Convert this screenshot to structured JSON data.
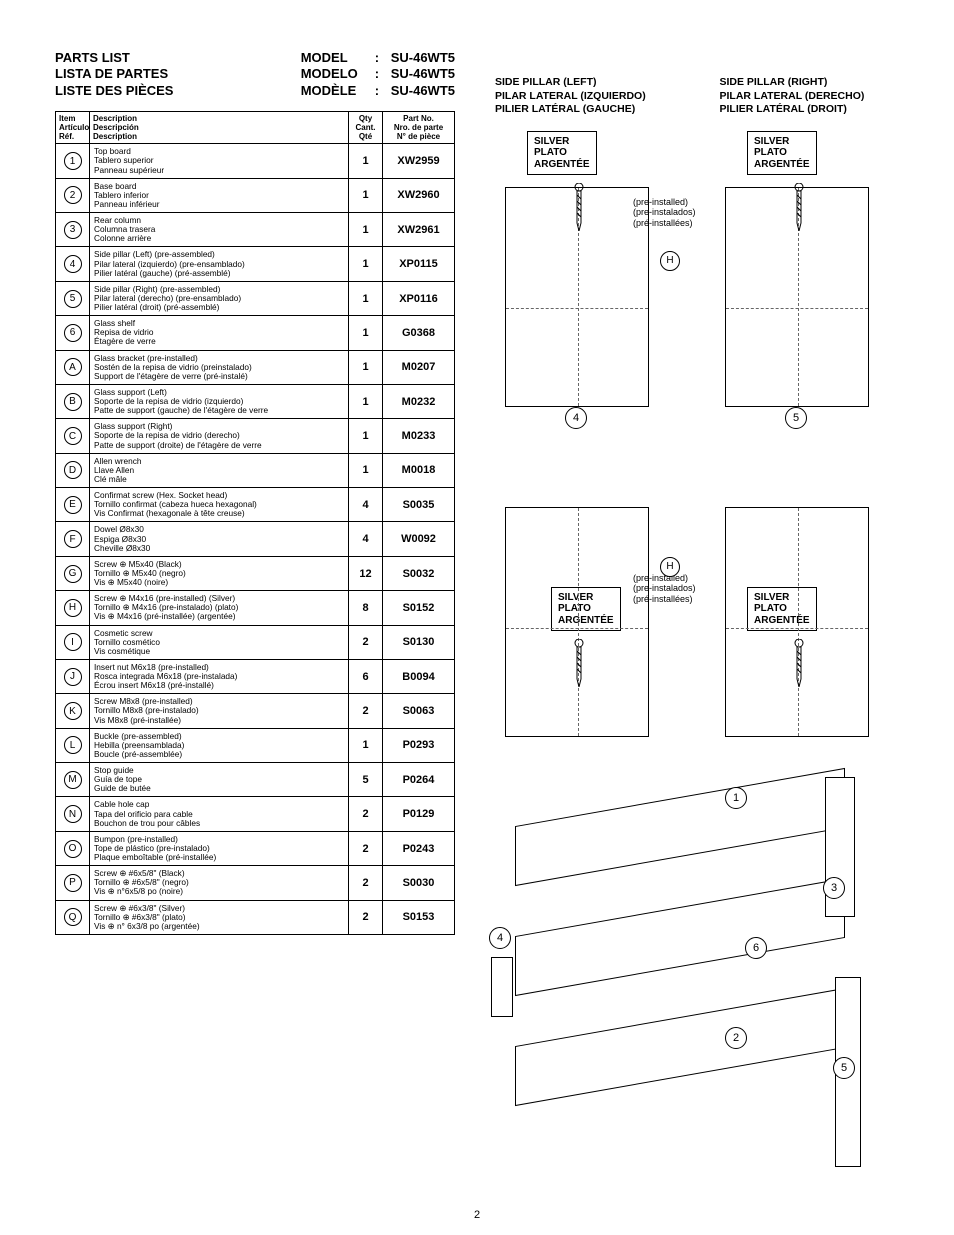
{
  "header": {
    "titles": [
      "PARTS LIST",
      "LISTA DE PARTES",
      "LISTE DES PIÈCES"
    ],
    "model_labels": [
      "MODEL",
      "MODELO",
      "MODÈLE"
    ],
    "model_value": "SU-46WT5"
  },
  "table": {
    "head": {
      "item": [
        "Item",
        "Artículo",
        "Réf."
      ],
      "desc": [
        "Description",
        "Descripción",
        "Description"
      ],
      "qty": [
        "Qty",
        "Cant.",
        "Qté"
      ],
      "part": [
        "Part No.",
        "Nro. de parte",
        "N° de pièce"
      ]
    },
    "rows": [
      {
        "id": "1",
        "desc": [
          "Top board",
          "Tablero superior",
          "Panneau supérieur"
        ],
        "qty": "1",
        "part": "XW2959"
      },
      {
        "id": "2",
        "desc": [
          "Base board",
          "Tablero inferior",
          "Panneau inférieur"
        ],
        "qty": "1",
        "part": "XW2960"
      },
      {
        "id": "3",
        "desc": [
          "Rear column",
          "Columna trasera",
          "Colonne arrière"
        ],
        "qty": "1",
        "part": "XW2961"
      },
      {
        "id": "4",
        "desc": [
          "Side pillar (Left) (pre-assembled)",
          "Pilar lateral (izquierdo) (pre-ensamblado)",
          "Pilier latéral (gauche) (pré-assemblé)"
        ],
        "qty": "1",
        "part": "XP0115"
      },
      {
        "id": "5",
        "desc": [
          "Side pillar (Right) (pre-assembled)",
          "Pilar lateral (derecho) (pre-ensamblado)",
          "Pilier latéral (droit) (pré-assemblé)"
        ],
        "qty": "1",
        "part": "XP0116"
      },
      {
        "id": "6",
        "desc": [
          "Glass shelf",
          "Repisa de vidrio",
          "Étagère de verre"
        ],
        "qty": "1",
        "part": "G0368"
      },
      {
        "id": "A",
        "desc": [
          "Glass bracket (pre-installed)",
          "Sostén de la repisa de vidrio (preinstalado)",
          "Support de l'étagère de verre (pré-instalé)"
        ],
        "qty": "1",
        "part": "M0207"
      },
      {
        "id": "B",
        "desc": [
          "Glass support (Left)",
          "Soporte de la repisa de vidrio (izquierdo)",
          "Patte de support (gauche) de l'étagère de verre"
        ],
        "qty": "1",
        "part": "M0232"
      },
      {
        "id": "C",
        "desc": [
          "Glass support (Right)",
          "Soporte de la repisa de vidrio (derecho)",
          "Patte de support (droite) de l'étagère de verre"
        ],
        "qty": "1",
        "part": "M0233"
      },
      {
        "id": "D",
        "desc": [
          "Allen wrench",
          "Llave Allen",
          "Clé mâle"
        ],
        "qty": "1",
        "part": "M0018"
      },
      {
        "id": "E",
        "desc": [
          "Confirmat screw (Hex. Socket head)",
          "Tornillo confirmat (cabeza hueca hexagonal)",
          "Vis Confirmat (hexagonale à tête creuse)"
        ],
        "qty": "4",
        "part": "S0035"
      },
      {
        "id": "F",
        "desc": [
          "Dowel Ø8x30",
          "Espiga Ø8x30",
          "Cheville Ø8x30"
        ],
        "qty": "4",
        "part": "W0092"
      },
      {
        "id": "G",
        "desc": [
          "Screw ⊕ M5x40 (Black)",
          "Tornillo ⊕ M5x40 (negro)",
          "Vis ⊕ M5x40 (noire)"
        ],
        "qty": "12",
        "part": "S0032"
      },
      {
        "id": "H",
        "desc": [
          "Screw ⊕ M4x16 (pre-installed) (Silver)",
          "Tornillo ⊕ M4x16 (pre-instalado) (plato)",
          "Vis ⊕ M4x16 (pré-installée) (argentée)"
        ],
        "qty": "8",
        "part": "S0152"
      },
      {
        "id": "I",
        "desc": [
          "Cosmetic screw",
          "Tornillo cosmético",
          "Vis cosmétique"
        ],
        "qty": "2",
        "part": "S0130"
      },
      {
        "id": "J",
        "desc": [
          "Insert nut M6x18 (pre-installed)",
          "Rosca integrada M6x18 (pre-instalada)",
          "Écrou insert M6x18 (pré-installé)"
        ],
        "qty": "6",
        "part": "B0094"
      },
      {
        "id": "K",
        "desc": [
          "Screw M8x8 (pre-installed)",
          "Tornillo M8x8 (pre-instalado)",
          "Vis M8x8 (pré-installée)"
        ],
        "qty": "2",
        "part": "S0063"
      },
      {
        "id": "L",
        "desc": [
          "Buckle (pre-assembled)",
          "Hebilla (preensamblada)",
          "Boucle (pré-assemblée)"
        ],
        "qty": "1",
        "part": "P0293"
      },
      {
        "id": "M",
        "desc": [
          "Stop guide",
          "Guía de tope",
          "Guide de butée"
        ],
        "qty": "5",
        "part": "P0264"
      },
      {
        "id": "N",
        "desc": [
          "Cable hole cap",
          "Tapa del orificio para cable",
          "Bouchon de trou pour câbles"
        ],
        "qty": "2",
        "part": "P0129"
      },
      {
        "id": "O",
        "desc": [
          "Bumpon (pre-installed)",
          "Tope de plástico (pre-instalado)",
          "Plaque emboîtable (pré-installée)"
        ],
        "qty": "2",
        "part": "P0243"
      },
      {
        "id": "P",
        "desc": [
          "Screw ⊕ #6x5/8\" (Black)",
          "Tornillo ⊕ #6x5/8\" (negro)",
          "Vis ⊕ n°6x5/8 po (noire)"
        ],
        "qty": "2",
        "part": "S0030"
      },
      {
        "id": "Q",
        "desc": [
          "Screw ⊕ #6x3/8\" (Silver)",
          "Tornillo ⊕ #6x3/8\" (plato)",
          "Vis ⊕ n° 6x3/8 po (argentée)"
        ],
        "qty": "2",
        "part": "S0153"
      }
    ]
  },
  "right": {
    "pillar_left": [
      "SIDE PILLAR (LEFT)",
      "PILAR LATERAL (IZQUIERDO)",
      "PILIER LATÉRAL (GAUCHE)"
    ],
    "pillar_right": [
      "SIDE PILLAR (RIGHT)",
      "PILAR LATERAL (DERECHO)",
      "PILIER LATÉRAL (DROIT)"
    ],
    "silver": [
      "SILVER",
      "PLATO",
      "ARGENTÉE"
    ],
    "preinstalled": [
      "(pre-installed)",
      "(pre-instalados)",
      "(pré-installées)"
    ],
    "callouts": {
      "h": "H",
      "four": "4",
      "five": "5",
      "one": "1",
      "two": "2",
      "three": "3",
      "six": "6"
    }
  },
  "page_number": "2"
}
